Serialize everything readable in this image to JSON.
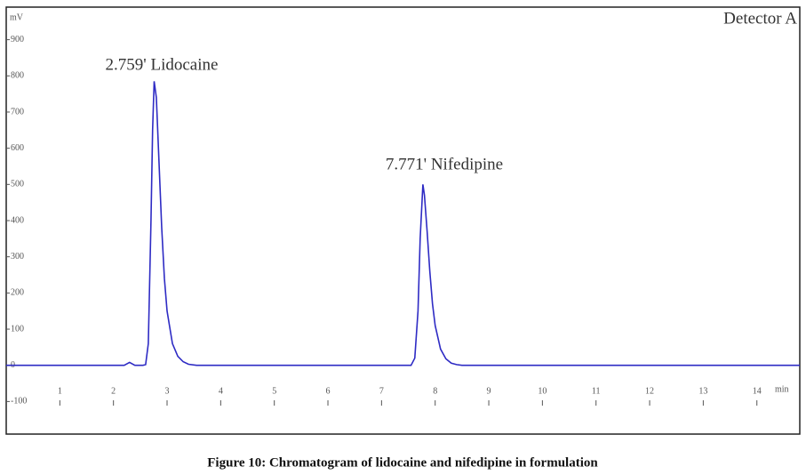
{
  "chart_data": {
    "type": "line",
    "caption": "Figure 10: Chromatogram of lidocaine and nifedipine in formulation",
    "detector": "Detector A",
    "ylabel": "mV",
    "xlabel": "min",
    "annotations": [
      "2.759' Lidocaine",
      "7.771' Nifedipine"
    ],
    "xlim": [
      0,
      14.8
    ],
    "ylim": [
      -190,
      990
    ],
    "xticks": [
      1,
      2,
      3,
      4,
      5,
      6,
      7,
      8,
      9,
      10,
      11,
      12,
      13,
      14
    ],
    "yticks": [
      -100,
      0,
      100,
      200,
      300,
      400,
      500,
      600,
      700,
      800,
      900
    ],
    "series": [
      {
        "color": "#2e2bc4",
        "x": [
          0,
          2.2,
          2.3,
          2.4,
          2.55,
          2.6,
          2.65,
          2.7,
          2.73,
          2.759,
          2.8,
          2.85,
          2.9,
          2.95,
          3.0,
          3.1,
          3.2,
          3.3,
          3.4,
          3.55,
          7.55,
          7.62,
          7.68,
          7.72,
          7.771,
          7.8,
          7.85,
          7.9,
          7.95,
          8.0,
          8.1,
          8.2,
          8.3,
          8.4,
          8.5,
          14.8
        ],
        "values": [
          0,
          0,
          8,
          0,
          0,
          2,
          60,
          400,
          650,
          785,
          740,
          560,
          380,
          240,
          150,
          60,
          25,
          10,
          3,
          0,
          0,
          20,
          150,
          350,
          500,
          470,
          370,
          260,
          170,
          110,
          45,
          18,
          6,
          2,
          0,
          0
        ]
      }
    ]
  }
}
